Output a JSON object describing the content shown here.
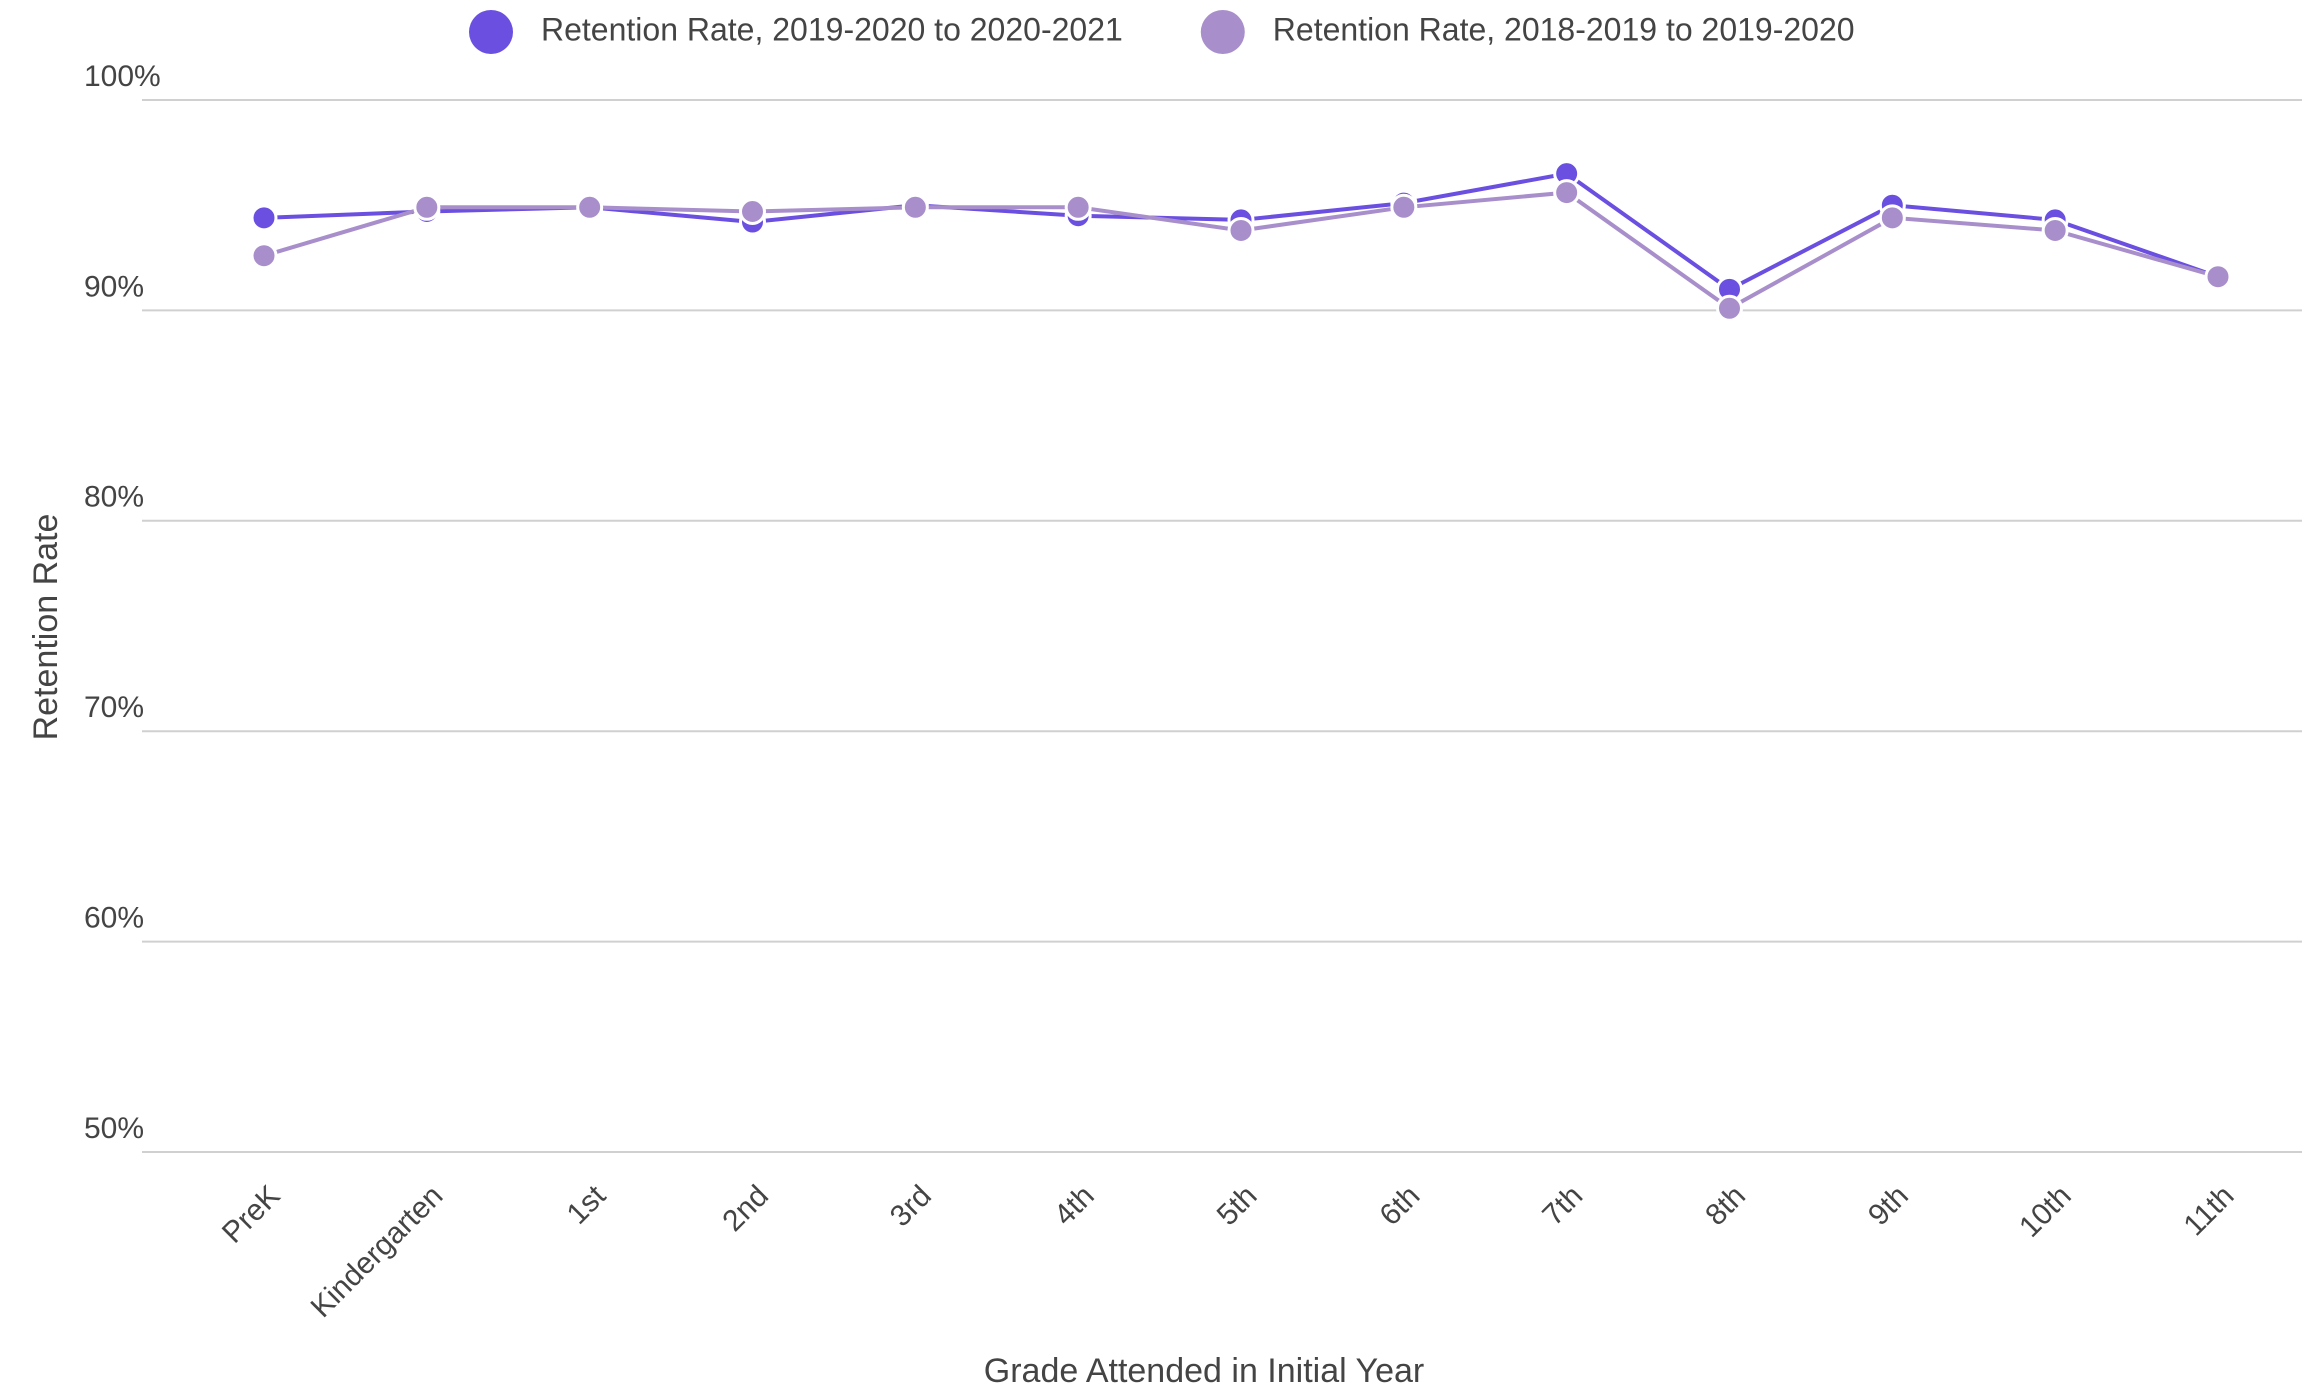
{
  "chart_data": {
    "type": "line",
    "x_label": "Grade Attended in Initial Year",
    "y_label": "Retention Rate",
    "categories": [
      "PreK",
      "Kindergarten",
      "1st",
      "2nd",
      "3rd",
      "4th",
      "5th",
      "6th",
      "7th",
      "8th",
      "9th",
      "10th",
      "11th"
    ],
    "series": [
      {
        "name": "Retention Rate, 2019-2020 to 2020-2021",
        "color": "#6b4fe0",
        "values": [
          94.4,
          94.7,
          94.9,
          94.2,
          95.0,
          94.5,
          94.3,
          95.1,
          96.5,
          91.0,
          95.0,
          94.3,
          91.6
        ]
      },
      {
        "name": "Retention Rate, 2018-2019 to 2019-2020",
        "color": "#a88fcb",
        "values": [
          92.6,
          94.9,
          94.9,
          94.7,
          94.9,
          94.9,
          93.8,
          94.9,
          95.6,
          90.1,
          94.4,
          93.8,
          91.6
        ]
      }
    ],
    "ylim": [
      50,
      100
    ],
    "yticks": [
      {
        "value": 50,
        "label": "50%"
      },
      {
        "value": 60,
        "label": "60%"
      },
      {
        "value": 70,
        "label": "70%"
      },
      {
        "value": 80,
        "label": "80%"
      },
      {
        "value": 90,
        "label": "90%"
      },
      {
        "value": 100,
        "label": "100%"
      }
    ],
    "grid": true,
    "legend": "top"
  }
}
